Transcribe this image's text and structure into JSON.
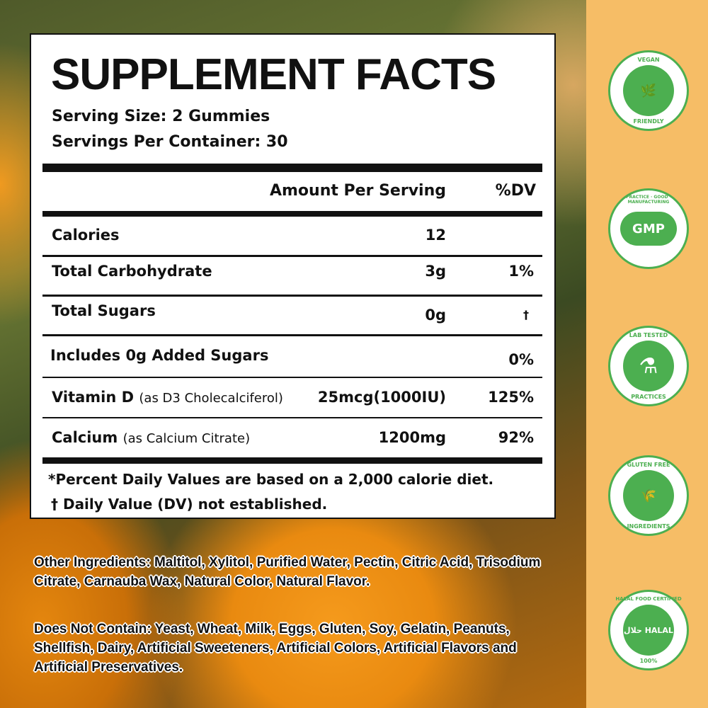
{
  "facts": {
    "title": "SUPPLEMENT FACTS",
    "serving_size": "Serving Size: 2 Gummies",
    "servings_per_container": "Servings Per Container: 30",
    "col_amount": "Amount Per Serving",
    "col_dv": "%DV",
    "rows": [
      {
        "name": "Calories",
        "note": "",
        "amount": "12",
        "dv": ""
      },
      {
        "name": "Total Carbohydrate",
        "note": "",
        "amount": "3g",
        "dv": "1%"
      },
      {
        "name": "Total Sugars",
        "note": "",
        "amount": "0g",
        "dv": "†"
      },
      {
        "name": "Includes 0g Added Sugars",
        "note": "",
        "amount": "",
        "dv": "0%"
      },
      {
        "name": "Vitamin D",
        "note": "(as D3 Cholecalciferol)",
        "amount": "25mcg(1000IU)",
        "dv": "125%"
      },
      {
        "name": "Calcium",
        "note": "(as Calcium Citrate)",
        "amount": "1200mg",
        "dv": "92%"
      }
    ],
    "footnote1": "*Percent Daily Values are based on a 2,000 calorie diet.",
    "footnote2": "† Daily Value (DV) not established."
  },
  "ingredients": {
    "other": "Other Ingredients:  Maltitol, Xylitol, Purified Water, Pectin, Citric Acid, Trisodium Citrate, Carnauba Wax, Natural Color, Natural Flavor.",
    "not_contain": "Does Not Contain:  Yeast, Wheat, Milk, Eggs, Gluten, Soy, Gelatin, Peanuts, Shellfish, Dairy, Artificial Sweeteners, Artificial Colors, Artificial Flavors and Artificial Preservatives."
  },
  "badges": [
    {
      "top": "VEGAN",
      "center": "🌿",
      "bottom": "FRIENDLY",
      "icon": "leaf-icon"
    },
    {
      "top": "PRACTICE · GOOD · MANUFACTURING",
      "center": "GMP",
      "bottom": "",
      "icon": "gmp-icon"
    },
    {
      "top": "LAB TESTED",
      "center": "⚗",
      "bottom": "PRACTICES",
      "icon": "flask-icon"
    },
    {
      "top": "GLUTEN FREE",
      "center": "🌾",
      "bottom": "INGREDIENTS",
      "icon": "wheat-icon"
    },
    {
      "top": "HALAL FOOD CERTIFIED",
      "center": "حلال HALAL",
      "bottom": "100%",
      "icon": "halal-icon"
    }
  ],
  "colors": {
    "panel": "#f6bd66",
    "badge_green": "#4caf50"
  }
}
